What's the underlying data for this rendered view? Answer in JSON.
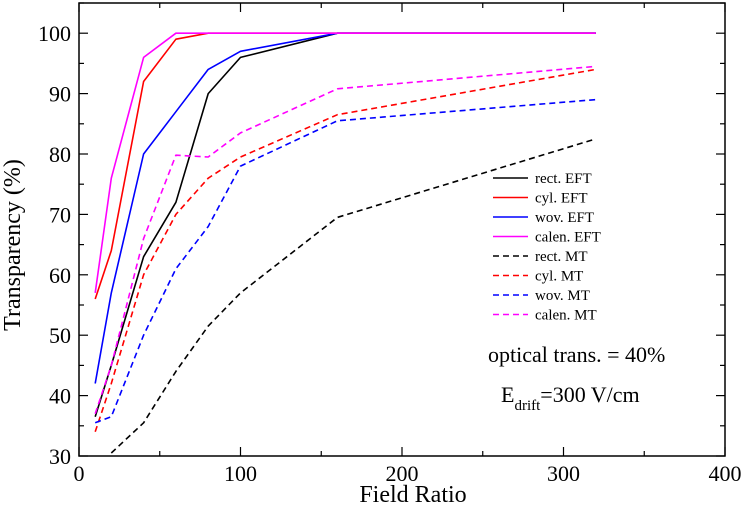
{
  "chart_data": {
    "type": "line",
    "title": "",
    "xlabel": "Field Ratio",
    "ylabel": "Transparency (%)",
    "xlim": [
      0,
      400
    ],
    "ylim": [
      30,
      105
    ],
    "x_ticks": [
      0,
      100,
      200,
      300,
      400
    ],
    "x_tick_labels": [
      "0",
      "100",
      "200",
      "300",
      "400"
    ],
    "y_ticks": [
      30,
      40,
      50,
      60,
      70,
      80,
      90,
      100
    ],
    "y_tick_labels": [
      "30",
      "40",
      "50",
      "60",
      "70",
      "80",
      "90",
      "100"
    ],
    "grid": false,
    "legend_position": "right",
    "series": [
      {
        "name": "rect. EFT",
        "color": "#000000",
        "dashed": false,
        "x": [
          10,
          20,
          40,
          60,
          80,
          100,
          160,
          320
        ],
        "y": [
          36.5,
          45,
          63,
          72,
          90,
          96,
          100,
          100
        ]
      },
      {
        "name": "cyl. EFT",
        "color": "#ff0000",
        "dashed": false,
        "x": [
          10,
          20,
          40,
          60,
          80,
          100,
          160,
          320
        ],
        "y": [
          56,
          64,
          92,
          99,
          100,
          100,
          100,
          100
        ]
      },
      {
        "name": "wov. EFT",
        "color": "#0000ff",
        "dashed": false,
        "x": [
          10,
          20,
          40,
          60,
          80,
          100,
          160,
          320
        ],
        "y": [
          42,
          57,
          80,
          87,
          94,
          97,
          100,
          100
        ]
      },
      {
        "name": "calen. EFT",
        "color": "#ff00ff",
        "dashed": false,
        "x": [
          10,
          20,
          40,
          60,
          80,
          100,
          160,
          320
        ],
        "y": [
          57,
          76,
          96,
          100,
          100,
          100,
          100,
          100
        ]
      },
      {
        "name": "rect. MT",
        "color": "#000000",
        "dashed": true,
        "x": [
          20,
          40,
          60,
          80,
          100,
          160,
          320
        ],
        "y": [
          30.5,
          35.5,
          44,
          51.5,
          57,
          69.5,
          82.5
        ]
      },
      {
        "name": "cyl. MT",
        "color": "#ff0000",
        "dashed": true,
        "x": [
          10,
          20,
          40,
          60,
          80,
          100,
          160,
          320
        ],
        "y": [
          34,
          42,
          60,
          70,
          76,
          79.5,
          86.5,
          94
        ]
      },
      {
        "name": "wov. MT",
        "color": "#0000ff",
        "dashed": true,
        "x": [
          10,
          20,
          40,
          60,
          80,
          100,
          160,
          320
        ],
        "y": [
          35.5,
          36.5,
          50,
          61,
          68,
          78,
          85.5,
          89
        ]
      },
      {
        "name": "calen. MT",
        "color": "#ff00ff",
        "dashed": true,
        "x": [
          10,
          20,
          40,
          60,
          80,
          100,
          160,
          320
        ],
        "y": [
          37,
          45,
          66,
          79.8,
          79.5,
          83.5,
          90.8,
          94.5
        ]
      }
    ],
    "annotations": {
      "optical": "optical trans. = 40%",
      "edrift_main": "E",
      "edrift_sub": "drift",
      "edrift_value": "=300 V/cm"
    }
  }
}
